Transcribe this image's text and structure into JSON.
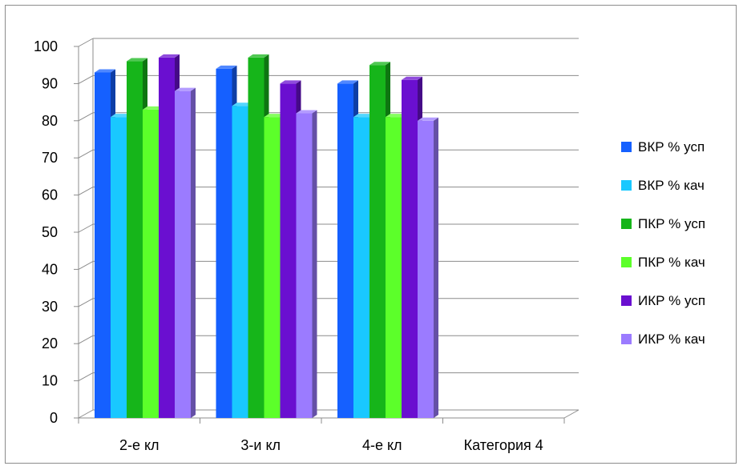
{
  "chart_data": {
    "type": "bar",
    "categories": [
      "2-е кл",
      "3-и кл",
      "4-е кл",
      "Категория 4"
    ],
    "series": [
      {
        "name": "ВКР % усп",
        "color": "#1560ff",
        "values": [
          93,
          94,
          90,
          null
        ]
      },
      {
        "name": "ВКР % кач",
        "color": "#19c8ff",
        "values": [
          81,
          84,
          81,
          null
        ]
      },
      {
        "name": "ПКР % усп",
        "color": "#16b51a",
        "values": [
          96,
          97,
          95,
          null
        ]
      },
      {
        "name": "ПКР % кач",
        "color": "#5cff2a",
        "values": [
          83,
          81,
          81,
          null
        ]
      },
      {
        "name": "ИКР % усп",
        "color": "#6a0fd0",
        "values": [
          97,
          90,
          91,
          null
        ]
      },
      {
        "name": "ИКР % кач",
        "color": "#9b7bff",
        "values": [
          88,
          82,
          80,
          null
        ]
      }
    ],
    "yticks": [
      "0",
      "10",
      "20",
      "30",
      "40",
      "50",
      "60",
      "70",
      "80",
      "90",
      "100"
    ],
    "ylim": [
      0,
      100
    ],
    "grid": true,
    "legend_position": "right"
  }
}
